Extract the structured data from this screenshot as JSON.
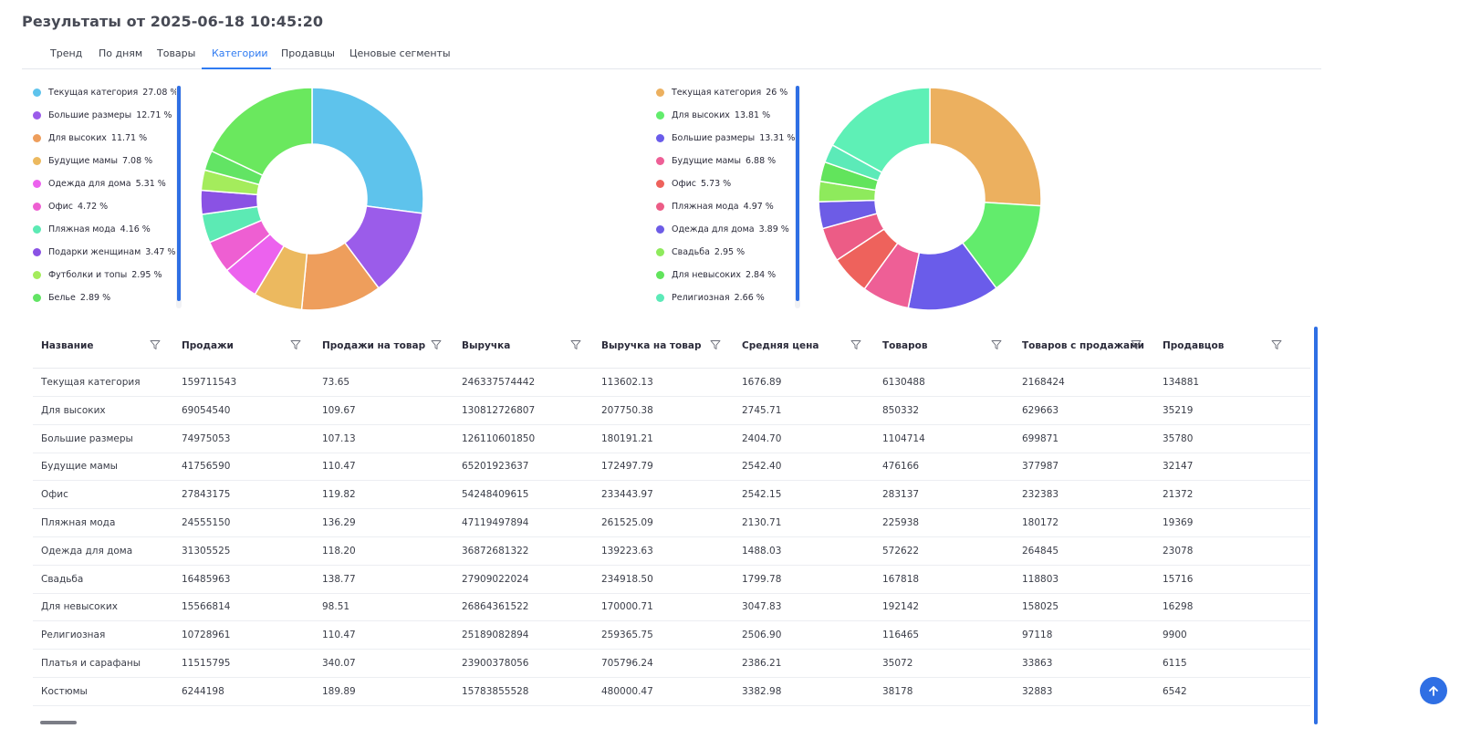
{
  "page": {
    "title": "Результаты от 2025-06-18 10:45:20"
  },
  "tabs": [
    {
      "label": "Тренд",
      "active": false
    },
    {
      "label": "По дням",
      "active": false
    },
    {
      "label": "Товары",
      "active": false
    },
    {
      "label": "Категории",
      "active": true
    },
    {
      "label": "Продавцы",
      "active": false
    },
    {
      "label": "Ценовые сегменты",
      "active": false
    }
  ],
  "chart_data": [
    {
      "type": "pie",
      "donut": true,
      "legend_position": "left",
      "slices": [
        {
          "label": "Текущая категория",
          "value": 27.08,
          "value_text": "27.08  %",
          "color": "#5ec3ec"
        },
        {
          "label": "Большие размеры",
          "value": 12.71,
          "value_text": "12.71  %",
          "color": "#9b5cea"
        },
        {
          "label": "Для высоких",
          "value": 11.71,
          "value_text": "11.71  %",
          "color": "#ee9e5c"
        },
        {
          "label": "Будущие мамы",
          "value": 7.08,
          "value_text": "7.08  %",
          "color": "#ecb95f"
        },
        {
          "label": "Одежда для дома",
          "value": 5.31,
          "value_text": "5.31  %",
          "color": "#ec62ee"
        },
        {
          "label": "Офис",
          "value": 4.72,
          "value_text": "4.72  %",
          "color": "#ee5fd2"
        },
        {
          "label": "Пляжная мода",
          "value": 4.16,
          "value_text": "4.16  %",
          "color": "#5ceab4"
        },
        {
          "label": "Подарки женщинам",
          "value": 3.47,
          "value_text": "3.47  %",
          "color": "#8a52e4"
        },
        {
          "label": "Футболки и топы",
          "value": 2.95,
          "value_text": "2.95  %",
          "color": "#a4ec5c"
        },
        {
          "label": "Белье",
          "value": 2.89,
          "value_text": "2.89  %",
          "color": "#62e464"
        }
      ],
      "other_slices": [
        {
          "value": 17.92,
          "color": "#6ae85e"
        }
      ]
    },
    {
      "type": "pie",
      "donut": true,
      "legend_position": "left",
      "slices": [
        {
          "label": "Текущая категория",
          "value": 26,
          "value_text": "26  %",
          "color": "#ecb05f"
        },
        {
          "label": "Для высоких",
          "value": 13.81,
          "value_text": "13.81  %",
          "color": "#62ec6c"
        },
        {
          "label": "Большие размеры",
          "value": 13.31,
          "value_text": "13.31  %",
          "color": "#6a5cea"
        },
        {
          "label": "Будущие мамы",
          "value": 6.88,
          "value_text": "6.88  %",
          "color": "#ee5f96"
        },
        {
          "label": "Офис",
          "value": 5.73,
          "value_text": "5.73  %",
          "color": "#ee625c"
        },
        {
          "label": "Пляжная мода",
          "value": 4.97,
          "value_text": "4.97  %",
          "color": "#ec5c86"
        },
        {
          "label": "Одежда для дома",
          "value": 3.89,
          "value_text": "3.89  %",
          "color": "#6d5ce6"
        },
        {
          "label": "Свадьба",
          "value": 2.95,
          "value_text": "2.95  %",
          "color": "#8eea5c"
        },
        {
          "label": "Для невысоких",
          "value": 2.84,
          "value_text": "2.84  %",
          "color": "#62e45c"
        },
        {
          "label": "Религиозная",
          "value": 2.66,
          "value_text": "2.66  %",
          "color": "#5ceab8"
        }
      ],
      "other_slices": [
        {
          "value": 16.96,
          "color": "#5ef0b6"
        }
      ]
    }
  ],
  "table": {
    "columns": [
      "Название",
      "Продажи",
      "Продажи на товар",
      "Выручка",
      "Выручка на товар",
      "Средняя цена",
      "Товаров",
      "Товаров с продажами",
      "Продавцов"
    ],
    "rows": [
      [
        "Текущая категория",
        "159711543",
        "73.65",
        "246337574442",
        "113602.13",
        "1676.89",
        "6130488",
        "2168424",
        "134881"
      ],
      [
        "Для высоких",
        "69054540",
        "109.67",
        "130812726807",
        "207750.38",
        "2745.71",
        "850332",
        "629663",
        "35219"
      ],
      [
        "Большие размеры",
        "74975053",
        "107.13",
        "126110601850",
        "180191.21",
        "2404.70",
        "1104714",
        "699871",
        "35780"
      ],
      [
        "Будущие мамы",
        "41756590",
        "110.47",
        "65201923637",
        "172497.79",
        "2542.40",
        "476166",
        "377987",
        "32147"
      ],
      [
        "Офис",
        "27843175",
        "119.82",
        "54248409615",
        "233443.97",
        "2542.15",
        "283137",
        "232383",
        "21372"
      ],
      [
        "Пляжная мода",
        "24555150",
        "136.29",
        "47119497894",
        "261525.09",
        "2130.71",
        "225938",
        "180172",
        "19369"
      ],
      [
        "Одежда для дома",
        "31305525",
        "118.20",
        "36872681322",
        "139223.63",
        "1488.03",
        "572622",
        "264845",
        "23078"
      ],
      [
        "Свадьба",
        "16485963",
        "138.77",
        "27909022024",
        "234918.50",
        "1799.78",
        "167818",
        "118803",
        "15716"
      ],
      [
        "Для невысоких",
        "15566814",
        "98.51",
        "26864361522",
        "170000.71",
        "3047.83",
        "192142",
        "158025",
        "16298"
      ],
      [
        "Религиозная",
        "10728961",
        "110.47",
        "25189082894",
        "259365.75",
        "2506.90",
        "116465",
        "97118",
        "9900"
      ],
      [
        "Платья и сарафаны",
        "11515795",
        "340.07",
        "23900378056",
        "705796.24",
        "2386.21",
        "35072",
        "33863",
        "6115"
      ],
      [
        "Костюмы",
        "6244198",
        "189.89",
        "15783855528",
        "480000.47",
        "3382.98",
        "38178",
        "32883",
        "6542"
      ]
    ]
  },
  "icons": {
    "filter": "filter-icon",
    "scroll_top": "arrow-up-icon"
  },
  "colors": {
    "accent": "#2f7bf2",
    "scrollbar": "#2f6fe4"
  }
}
